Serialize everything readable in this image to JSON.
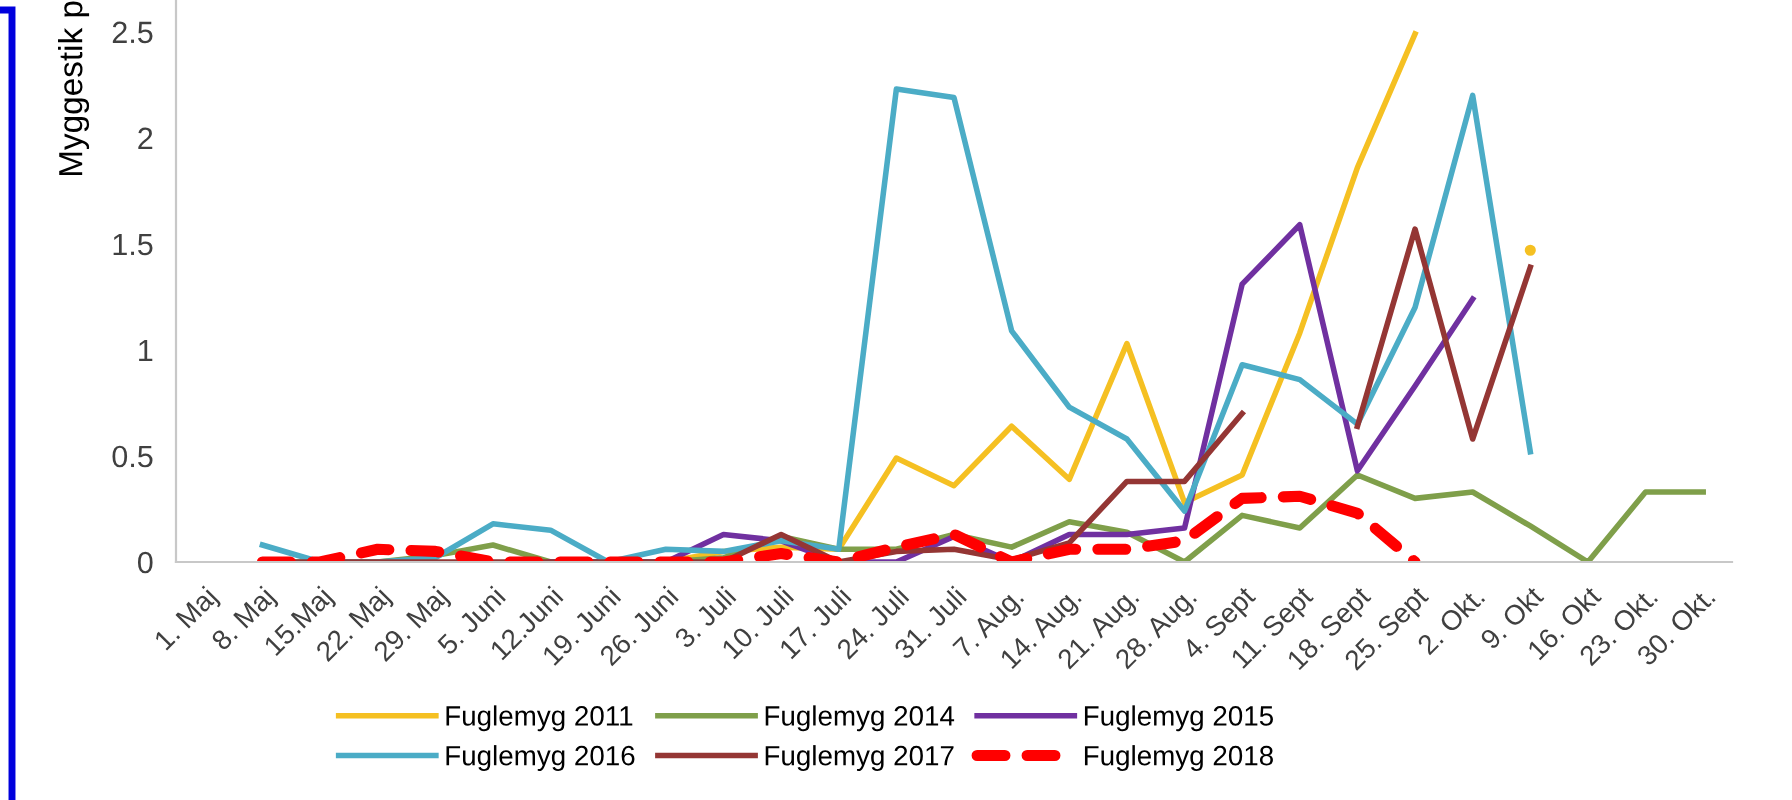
{
  "chart_data": {
    "type": "line",
    "ylabel": "Myggestik p",
    "categories": [
      "1. Maj",
      "8. Maj",
      "15.Maj",
      "22. Maj",
      "29. Maj",
      "5. Juni",
      "12.Juni",
      "19. Juni",
      "26. Juni",
      "3. Juli",
      "10. Juli",
      "17. Juli",
      "24. Juli",
      "31. Juli",
      "7. Aug.",
      "14. Aug.",
      "21. Aug.",
      "28. Aug.",
      "4. Sept",
      "11. Sept",
      "18. Sept",
      "25. Sept",
      "2. Okt.",
      "9. Okt",
      "16. Okt",
      "23. Okt.",
      "30. Okt."
    ],
    "ylim": [
      0,
      2.65
    ],
    "yticks": [
      0,
      0.5,
      1,
      1.5,
      2,
      2.5
    ],
    "grid": false,
    "legend": "bottom",
    "marker": "none",
    "series": [
      {
        "name": "Fuglemyg 2011",
        "color": "#f5c022",
        "line_style": "solid",
        "values": [
          null,
          null,
          null,
          null,
          null,
          null,
          null,
          0,
          0,
          0.05,
          0.07,
          0.06,
          0.49,
          0.36,
          0.64,
          0.39,
          1.03,
          0.28,
          0.41,
          1.08,
          1.86,
          2.49,
          null,
          1.47,
          null,
          null,
          null
        ]
      },
      {
        "name": "Fuglemyg 2014",
        "color": "#7f9f4a",
        "line_style": "solid",
        "values": [
          null,
          0,
          0,
          0,
          0.03,
          0.08,
          0,
          0,
          0,
          0.02,
          0.12,
          0.06,
          0.06,
          0.13,
          0.07,
          0.19,
          0.14,
          0,
          0.22,
          0.16,
          0.41,
          0.3,
          0.33,
          0.17,
          0,
          0.33,
          0.33
        ]
      },
      {
        "name": "Fuglemyg 2015",
        "color": "#7030a0",
        "line_style": "solid",
        "values": [
          null,
          null,
          null,
          null,
          null,
          null,
          0,
          0,
          0,
          0.13,
          0.1,
          0,
          0,
          0.12,
          0,
          0.13,
          0.13,
          0.16,
          1.31,
          1.59,
          0.43,
          0.83,
          1.24,
          null,
          null,
          null,
          null
        ]
      },
      {
        "name": "Fuglemyg 2016",
        "color": "#4bacc6",
        "line_style": "solid",
        "values": [
          null,
          0.08,
          0,
          0,
          0.02,
          0.18,
          0.15,
          0,
          0.06,
          0.05,
          0.1,
          0.06,
          2.23,
          2.19,
          1.09,
          0.73,
          0.58,
          0.24,
          0.93,
          0.86,
          0.65,
          1.2,
          2.2,
          0.52,
          null,
          null,
          null
        ]
      },
      {
        "name": "Fuglemyg 2017",
        "color": "#943634",
        "line_style": "solid",
        "values": [
          null,
          0,
          0,
          0,
          0,
          0,
          0,
          0,
          0,
          0,
          0.13,
          0,
          0.05,
          0.06,
          0.01,
          0.09,
          0.38,
          0.38,
          0.7,
          null,
          0.64,
          1.57,
          0.58,
          1.39,
          null,
          null,
          null
        ]
      },
      {
        "name": "Fuglemyg 2018",
        "color": "#ff0000",
        "line_style": "dashed",
        "values": [
          null,
          0,
          0,
          0.06,
          0.05,
          0,
          0,
          0,
          0,
          0,
          0.04,
          0,
          0.07,
          0.13,
          0,
          0.06,
          0.06,
          0.1,
          0.3,
          0.31,
          0.23,
          0,
          null,
          null,
          null,
          null,
          null
        ]
      }
    ]
  }
}
